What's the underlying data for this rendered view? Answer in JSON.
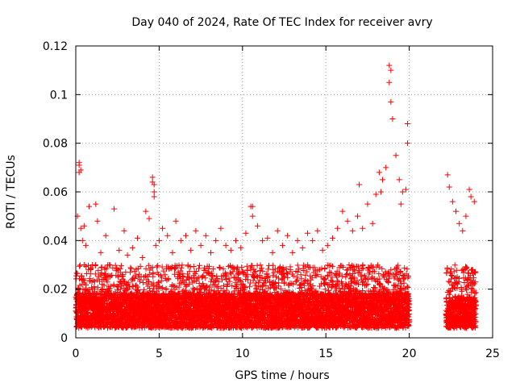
{
  "chart_data": {
    "type": "scatter",
    "title": "Day 040 of 2024, Rate Of TEC Index for receiver avry",
    "xlabel": "GPS time / hours",
    "ylabel": "ROTI / TECUs",
    "xlim": [
      0,
      25
    ],
    "ylim": [
      0,
      0.12
    ],
    "xticks": [
      0,
      5,
      10,
      15,
      20,
      25
    ],
    "xtick_labels": [
      "0",
      "5",
      "10",
      "15",
      "20",
      "25"
    ],
    "yticks": [
      0,
      0.02,
      0.04,
      0.06,
      0.08,
      0.1,
      0.12
    ],
    "ytick_labels": [
      "0",
      "0.02",
      "0.04",
      "0.06",
      "0.08",
      "0.1",
      "0.12"
    ],
    "grid": true,
    "marker": "+",
    "color": "#ff0000",
    "series": [
      {
        "name": "ROTI",
        "x": [
          0.1,
          0.2,
          0.3,
          0.3,
          0.4,
          0.5,
          0.6,
          0.8,
          1.0,
          1.2,
          1.3,
          1.5,
          1.8,
          2.0,
          2.3,
          2.6,
          2.9,
          3.1,
          3.4,
          3.7,
          4.0,
          4.2,
          4.4,
          4.6,
          4.6,
          4.7,
          4.8,
          5.0,
          5.2,
          5.5,
          5.8,
          6.0,
          6.3,
          6.6,
          6.9,
          7.2,
          7.5,
          7.8,
          8.1,
          8.4,
          8.7,
          9.0,
          9.3,
          9.6,
          9.9,
          10.2,
          10.5,
          10.6,
          10.9,
          11.2,
          11.5,
          11.8,
          12.1,
          12.4,
          12.7,
          13.0,
          13.3,
          13.6,
          13.9,
          14.2,
          14.5,
          14.8,
          15.1,
          15.4,
          15.7,
          16.0,
          16.3,
          16.6,
          16.9,
          17.2,
          17.5,
          17.8,
          18.0,
          18.2,
          18.4,
          18.6,
          18.8,
          18.8,
          18.9,
          18.9,
          19.0,
          19.2,
          19.4,
          19.6,
          19.8,
          19.9,
          19.9,
          22.3,
          22.4,
          22.6,
          22.8,
          23.0,
          23.2,
          23.4,
          23.6,
          23.7,
          23.9,
          0.2,
          0.2,
          4.7,
          4.7,
          10.6,
          17.0,
          18.3,
          19.5
        ],
        "y": [
          0.05,
          0.071,
          0.069,
          0.045,
          0.04,
          0.046,
          0.038,
          0.054,
          0.03,
          0.055,
          0.048,
          0.035,
          0.042,
          0.03,
          0.053,
          0.036,
          0.044,
          0.034,
          0.037,
          0.041,
          0.033,
          0.052,
          0.049,
          0.066,
          0.064,
          0.058,
          0.038,
          0.04,
          0.045,
          0.042,
          0.035,
          0.048,
          0.04,
          0.042,
          0.036,
          0.044,
          0.038,
          0.042,
          0.035,
          0.04,
          0.045,
          0.038,
          0.036,
          0.04,
          0.037,
          0.043,
          0.054,
          0.05,
          0.046,
          0.04,
          0.041,
          0.035,
          0.044,
          0.038,
          0.042,
          0.035,
          0.04,
          0.037,
          0.043,
          0.04,
          0.044,
          0.036,
          0.038,
          0.041,
          0.045,
          0.052,
          0.048,
          0.044,
          0.05,
          0.045,
          0.055,
          0.047,
          0.059,
          0.068,
          0.065,
          0.07,
          0.105,
          0.112,
          0.11,
          0.097,
          0.09,
          0.075,
          0.065,
          0.06,
          0.061,
          0.088,
          0.08,
          0.067,
          0.062,
          0.056,
          0.052,
          0.047,
          0.044,
          0.05,
          0.061,
          0.058,
          0.056,
          0.072,
          0.068,
          0.06,
          0.063,
          0.054,
          0.063,
          0.06,
          0.055
        ]
      }
    ],
    "dense_bands": [
      {
        "x_start": 0.0,
        "x_end": 20.0,
        "y_low": 0.004,
        "y_mid": 0.013,
        "y_high": 0.03
      },
      {
        "x_start": 22.2,
        "x_end": 24.0,
        "y_low": 0.004,
        "y_mid": 0.012,
        "y_high": 0.03
      }
    ]
  }
}
